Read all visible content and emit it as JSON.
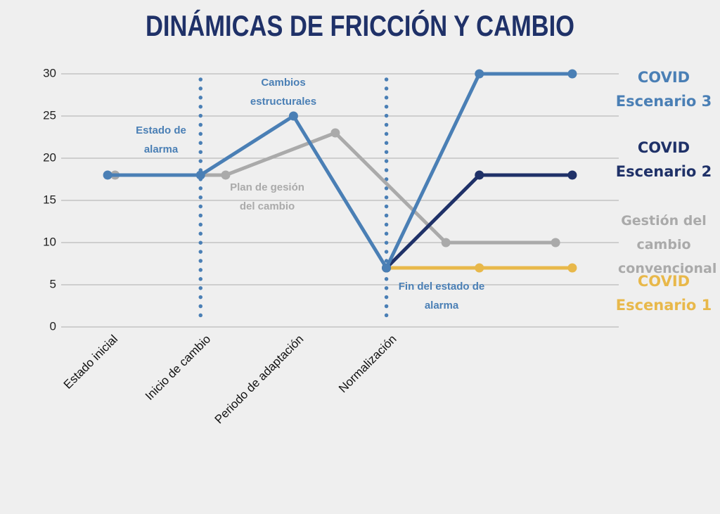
{
  "chart_data": {
    "type": "line",
    "title": "DINÁMICAS DE FRICCIÓN Y CAMBIO",
    "xlim": [
      -0.5,
      5.5
    ],
    "xticks": [
      {
        "value": 0,
        "label": "Estado inicial"
      },
      {
        "value": 1,
        "label": "Inicio de cambio"
      },
      {
        "value": 2,
        "label": "Periodo de adaptación"
      },
      {
        "value": 3,
        "label": "Normalización"
      }
    ],
    "ylim": [
      0,
      30
    ],
    "yticks": [
      0,
      5,
      10,
      15,
      20,
      25,
      30
    ],
    "grid": true,
    "vertical_markers": [
      1,
      3
    ],
    "vertical_marker_color": "#4a7fb5",
    "series": [
      {
        "name": "Gestión del cambio convencional",
        "color": "#aaaaaa",
        "x": [
          0.08,
          1.27,
          2.45,
          3.64,
          4.82
        ],
        "values": [
          18,
          18,
          23,
          10,
          10
        ]
      },
      {
        "name": "COVID Escenario 1",
        "color": "#e8b84a",
        "x": [
          3,
          4,
          5
        ],
        "values": [
          7,
          7,
          7
        ]
      },
      {
        "name": "COVID Escenario 2",
        "color": "#1f3168",
        "x": [
          3,
          4,
          5
        ],
        "values": [
          7,
          18,
          18
        ]
      },
      {
        "name": "COVID Escenario 3",
        "color": "#4a7fb5",
        "x": [
          0,
          1,
          2,
          3,
          4,
          5
        ],
        "values": [
          18,
          18,
          25,
          7,
          30,
          30
        ]
      }
    ],
    "annotations": [
      {
        "text": "Estado de alarma",
        "color": "#4a7fb5"
      },
      {
        "text": "Cambios estructurales",
        "color": "#4a7fb5"
      },
      {
        "text": "Plan de gesión del cambio",
        "color": "#aaaaaa"
      },
      {
        "text": "Fin del estado de alarma",
        "color": "#4a7fb5"
      }
    ]
  }
}
